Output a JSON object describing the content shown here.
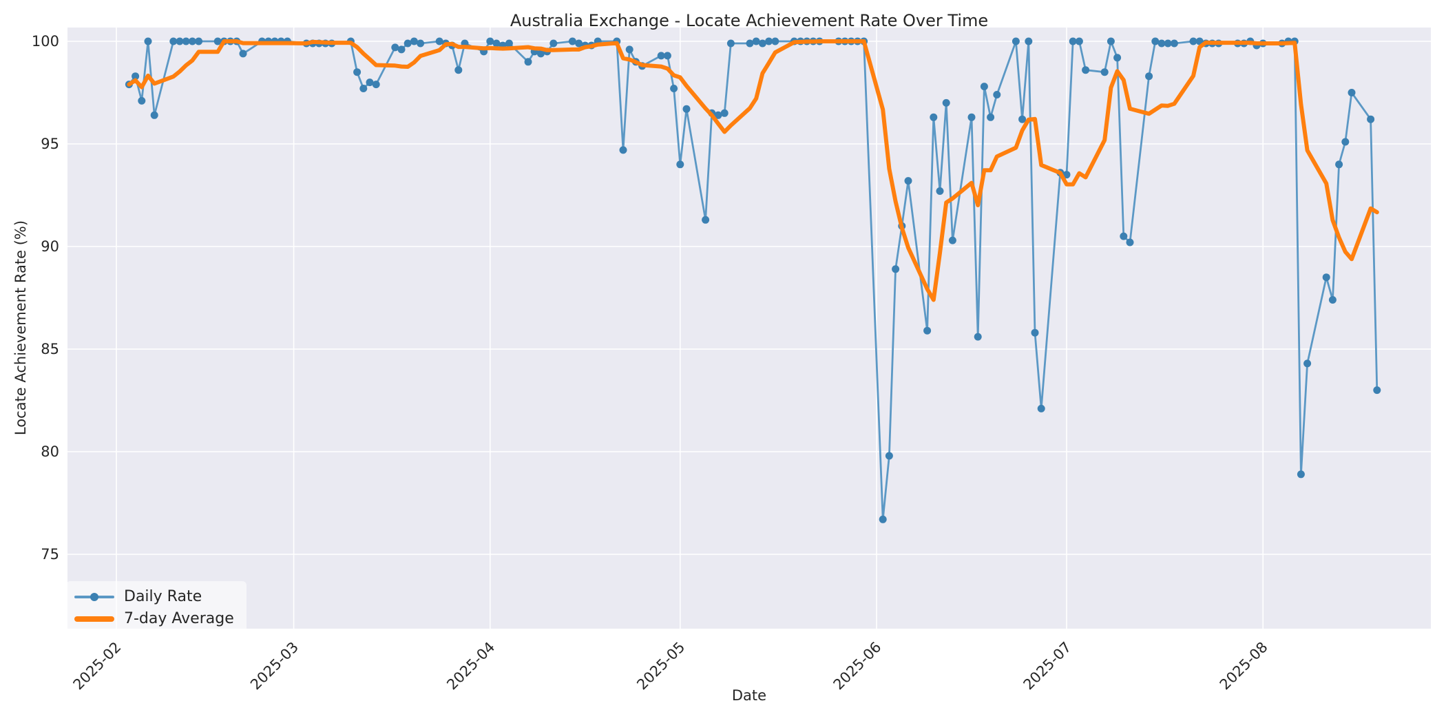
{
  "chart_data": {
    "type": "line",
    "title": "Australia Exchange - Locate Achievement Rate Over Time",
    "xlabel": "Date",
    "ylabel": "Locate Achievement Rate (%)",
    "grid": true,
    "legend_position": "lower-left",
    "x_epoch": "2025-02-01",
    "x_ticks": [
      {
        "label": "2025-02",
        "date": "2025-02-01"
      },
      {
        "label": "2025-03",
        "date": "2025-03-01"
      },
      {
        "label": "2025-04",
        "date": "2025-04-01"
      },
      {
        "label": "2025-05",
        "date": "2025-05-01"
      },
      {
        "label": "2025-06",
        "date": "2025-06-01"
      },
      {
        "label": "2025-07",
        "date": "2025-07-01"
      },
      {
        "label": "2025-08",
        "date": "2025-08-01"
      }
    ],
    "y_ticks": [
      75,
      80,
      85,
      90,
      95,
      100
    ],
    "ylim": [
      71.4,
      100.7
    ],
    "colors": {
      "plot_bg": "#eaeaf2",
      "grid": "#ffffff",
      "daily_line": "#5b98c5",
      "daily_marker": "#3b80b2",
      "avg_line": "#ff7f0e",
      "text": "#262626"
    },
    "series": [
      {
        "name": "Daily Rate",
        "points": [
          [
            "2025-02-03",
            97.9
          ],
          [
            "2025-02-04",
            98.3
          ],
          [
            "2025-02-05",
            97.1
          ],
          [
            "2025-02-06",
            100
          ],
          [
            "2025-02-07",
            96.4
          ],
          [
            "2025-02-10",
            100
          ],
          [
            "2025-02-11",
            100
          ],
          [
            "2025-02-12",
            100
          ],
          [
            "2025-02-13",
            100
          ],
          [
            "2025-02-14",
            100
          ],
          [
            "2025-02-17",
            100
          ],
          [
            "2025-02-18",
            100
          ],
          [
            "2025-02-19",
            100
          ],
          [
            "2025-02-20",
            100
          ],
          [
            "2025-02-21",
            99.4
          ],
          [
            "2025-02-24",
            100
          ],
          [
            "2025-02-25",
            100
          ],
          [
            "2025-02-26",
            100
          ],
          [
            "2025-02-27",
            100
          ],
          [
            "2025-02-28",
            100
          ],
          [
            "2025-03-03",
            99.9
          ],
          [
            "2025-03-04",
            99.9
          ],
          [
            "2025-03-05",
            99.9
          ],
          [
            "2025-03-06",
            99.9
          ],
          [
            "2025-03-07",
            99.9
          ],
          [
            "2025-03-10",
            100
          ],
          [
            "2025-03-11",
            98.5
          ],
          [
            "2025-03-12",
            97.7
          ],
          [
            "2025-03-13",
            98.0
          ],
          [
            "2025-03-14",
            97.9
          ],
          [
            "2025-03-17",
            99.7
          ],
          [
            "2025-03-18",
            99.6
          ],
          [
            "2025-03-19",
            99.9
          ],
          [
            "2025-03-20",
            100
          ],
          [
            "2025-03-21",
            99.9
          ],
          [
            "2025-03-24",
            100
          ],
          [
            "2025-03-25",
            99.9
          ],
          [
            "2025-03-26",
            99.8
          ],
          [
            "2025-03-27",
            98.6
          ],
          [
            "2025-03-28",
            99.9
          ],
          [
            "2025-03-31",
            99.5
          ],
          [
            "2025-04-01",
            100
          ],
          [
            "2025-04-02",
            99.9
          ],
          [
            "2025-04-03",
            99.8
          ],
          [
            "2025-04-04",
            99.9
          ],
          [
            "2025-04-07",
            99.0
          ],
          [
            "2025-04-08",
            99.5
          ],
          [
            "2025-04-09",
            99.4
          ],
          [
            "2025-04-10",
            99.5
          ],
          [
            "2025-04-11",
            99.9
          ],
          [
            "2025-04-14",
            100
          ],
          [
            "2025-04-15",
            99.9
          ],
          [
            "2025-04-16",
            99.8
          ],
          [
            "2025-04-17",
            99.8
          ],
          [
            "2025-04-18",
            100
          ],
          [
            "2025-04-21",
            100
          ],
          [
            "2025-04-22",
            94.7
          ],
          [
            "2025-04-23",
            99.6
          ],
          [
            "2025-04-24",
            99.0
          ],
          [
            "2025-04-25",
            98.8
          ],
          [
            "2025-04-28",
            99.3
          ],
          [
            "2025-04-29",
            99.3
          ],
          [
            "2025-04-30",
            97.7
          ],
          [
            "2025-05-01",
            94.0
          ],
          [
            "2025-05-02",
            96.7
          ],
          [
            "2025-05-05",
            91.3
          ],
          [
            "2025-05-06",
            96.5
          ],
          [
            "2025-05-07",
            96.4
          ],
          [
            "2025-05-08",
            96.5
          ],
          [
            "2025-05-09",
            99.9
          ],
          [
            "2025-05-12",
            99.9
          ],
          [
            "2025-05-13",
            100
          ],
          [
            "2025-05-14",
            99.9
          ],
          [
            "2025-05-15",
            100
          ],
          [
            "2025-05-16",
            100
          ],
          [
            "2025-05-19",
            100
          ],
          [
            "2025-05-20",
            100
          ],
          [
            "2025-05-21",
            100
          ],
          [
            "2025-05-22",
            100
          ],
          [
            "2025-05-23",
            100
          ],
          [
            "2025-05-26",
            100
          ],
          [
            "2025-05-27",
            100
          ],
          [
            "2025-05-28",
            100
          ],
          [
            "2025-05-29",
            100
          ],
          [
            "2025-05-30",
            100
          ],
          [
            "2025-06-02",
            76.7
          ],
          [
            "2025-06-03",
            79.8
          ],
          [
            "2025-06-04",
            88.9
          ],
          [
            "2025-06-05",
            91.0
          ],
          [
            "2025-06-06",
            93.2
          ],
          [
            "2025-06-09",
            85.9
          ],
          [
            "2025-06-10",
            96.3
          ],
          [
            "2025-06-11",
            92.7
          ],
          [
            "2025-06-12",
            97.0
          ],
          [
            "2025-06-13",
            90.3
          ],
          [
            "2025-06-16",
            96.3
          ],
          [
            "2025-06-17",
            85.6
          ],
          [
            "2025-06-18",
            97.8
          ],
          [
            "2025-06-19",
            96.3
          ],
          [
            "2025-06-20",
            97.4
          ],
          [
            "2025-06-23",
            100
          ],
          [
            "2025-06-24",
            96.2
          ],
          [
            "2025-06-25",
            100
          ],
          [
            "2025-06-26",
            85.8
          ],
          [
            "2025-06-27",
            82.1
          ],
          [
            "2025-06-30",
            93.6
          ],
          [
            "2025-07-01",
            93.5
          ],
          [
            "2025-07-02",
            100
          ],
          [
            "2025-07-03",
            100
          ],
          [
            "2025-07-04",
            98.6
          ],
          [
            "2025-07-07",
            98.5
          ],
          [
            "2025-07-08",
            100
          ],
          [
            "2025-07-09",
            99.2
          ],
          [
            "2025-07-10",
            90.5
          ],
          [
            "2025-07-11",
            90.2
          ],
          [
            "2025-07-14",
            98.3
          ],
          [
            "2025-07-15",
            100
          ],
          [
            "2025-07-16",
            99.9
          ],
          [
            "2025-07-17",
            99.9
          ],
          [
            "2025-07-18",
            99.9
          ],
          [
            "2025-07-21",
            100
          ],
          [
            "2025-07-22",
            100
          ],
          [
            "2025-07-23",
            99.9
          ],
          [
            "2025-07-24",
            99.9
          ],
          [
            "2025-07-25",
            99.9
          ],
          [
            "2025-07-28",
            99.9
          ],
          [
            "2025-07-29",
            99.9
          ],
          [
            "2025-07-30",
            100
          ],
          [
            "2025-07-31",
            99.8
          ],
          [
            "2025-08-01",
            99.9
          ],
          [
            "2025-08-04",
            99.9
          ],
          [
            "2025-08-05",
            100
          ],
          [
            "2025-08-06",
            100
          ],
          [
            "2025-08-07",
            78.9
          ],
          [
            "2025-08-08",
            84.3
          ],
          [
            "2025-08-11",
            88.5
          ],
          [
            "2025-08-12",
            87.4
          ],
          [
            "2025-08-13",
            94.0
          ],
          [
            "2025-08-14",
            95.1
          ],
          [
            "2025-08-15",
            97.5
          ],
          [
            "2025-08-18",
            96.2
          ],
          [
            "2025-08-19",
            83.0
          ]
        ]
      },
      {
        "name": "7-day Average",
        "derived_from": "Daily Rate",
        "window": 7
      }
    ]
  }
}
